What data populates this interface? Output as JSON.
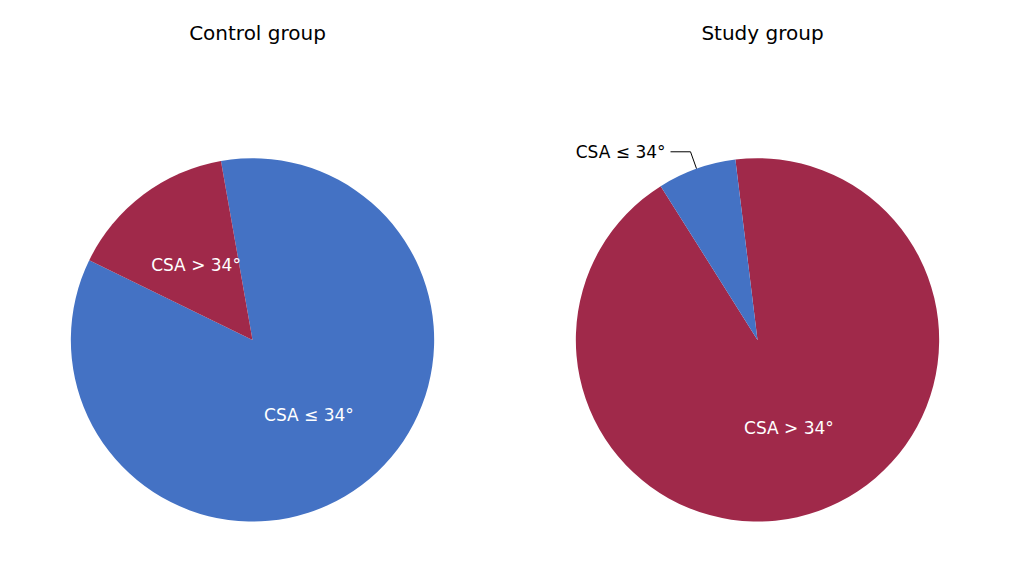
{
  "chart_data": [
    {
      "type": "pie",
      "title": "Control group",
      "categories": [
        "CSA ≤ 34°",
        "CSA > 34°"
      ],
      "values": [
        85,
        15
      ],
      "colors": [
        "#4472C4",
        "#A0294A"
      ]
    },
    {
      "type": "pie",
      "title": "Study group",
      "categories": [
        "CSA > 34°",
        "CSA ≤ 34°"
      ],
      "values": [
        93,
        7
      ],
      "colors": [
        "#A0294A",
        "#4472C4"
      ]
    }
  ]
}
